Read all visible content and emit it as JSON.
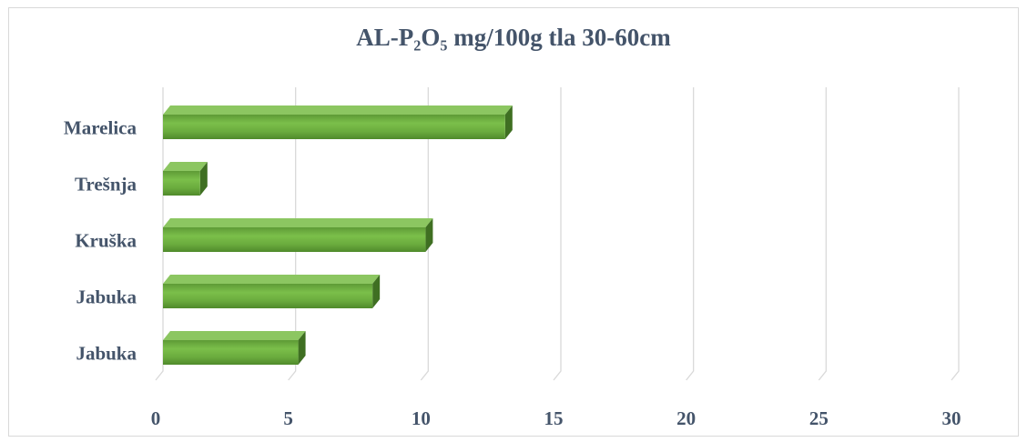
{
  "chart_data": {
    "type": "bar",
    "orientation": "horizontal",
    "title": "AL-P₂O₅ mg/100g tla 30-60cm",
    "categories": [
      "Marelica",
      "Trešnja",
      "Kruška",
      "Jabuka",
      "Jabuka"
    ],
    "values": [
      12.9,
      1.4,
      9.9,
      7.9,
      5.1
    ],
    "xlim": [
      0,
      30
    ],
    "xticks": [
      "0",
      "5",
      "10",
      "15",
      "20",
      "25",
      "30"
    ],
    "xlabel": "",
    "ylabel": "",
    "grid": true,
    "legend": "none",
    "bar_color": "#70ad47"
  }
}
